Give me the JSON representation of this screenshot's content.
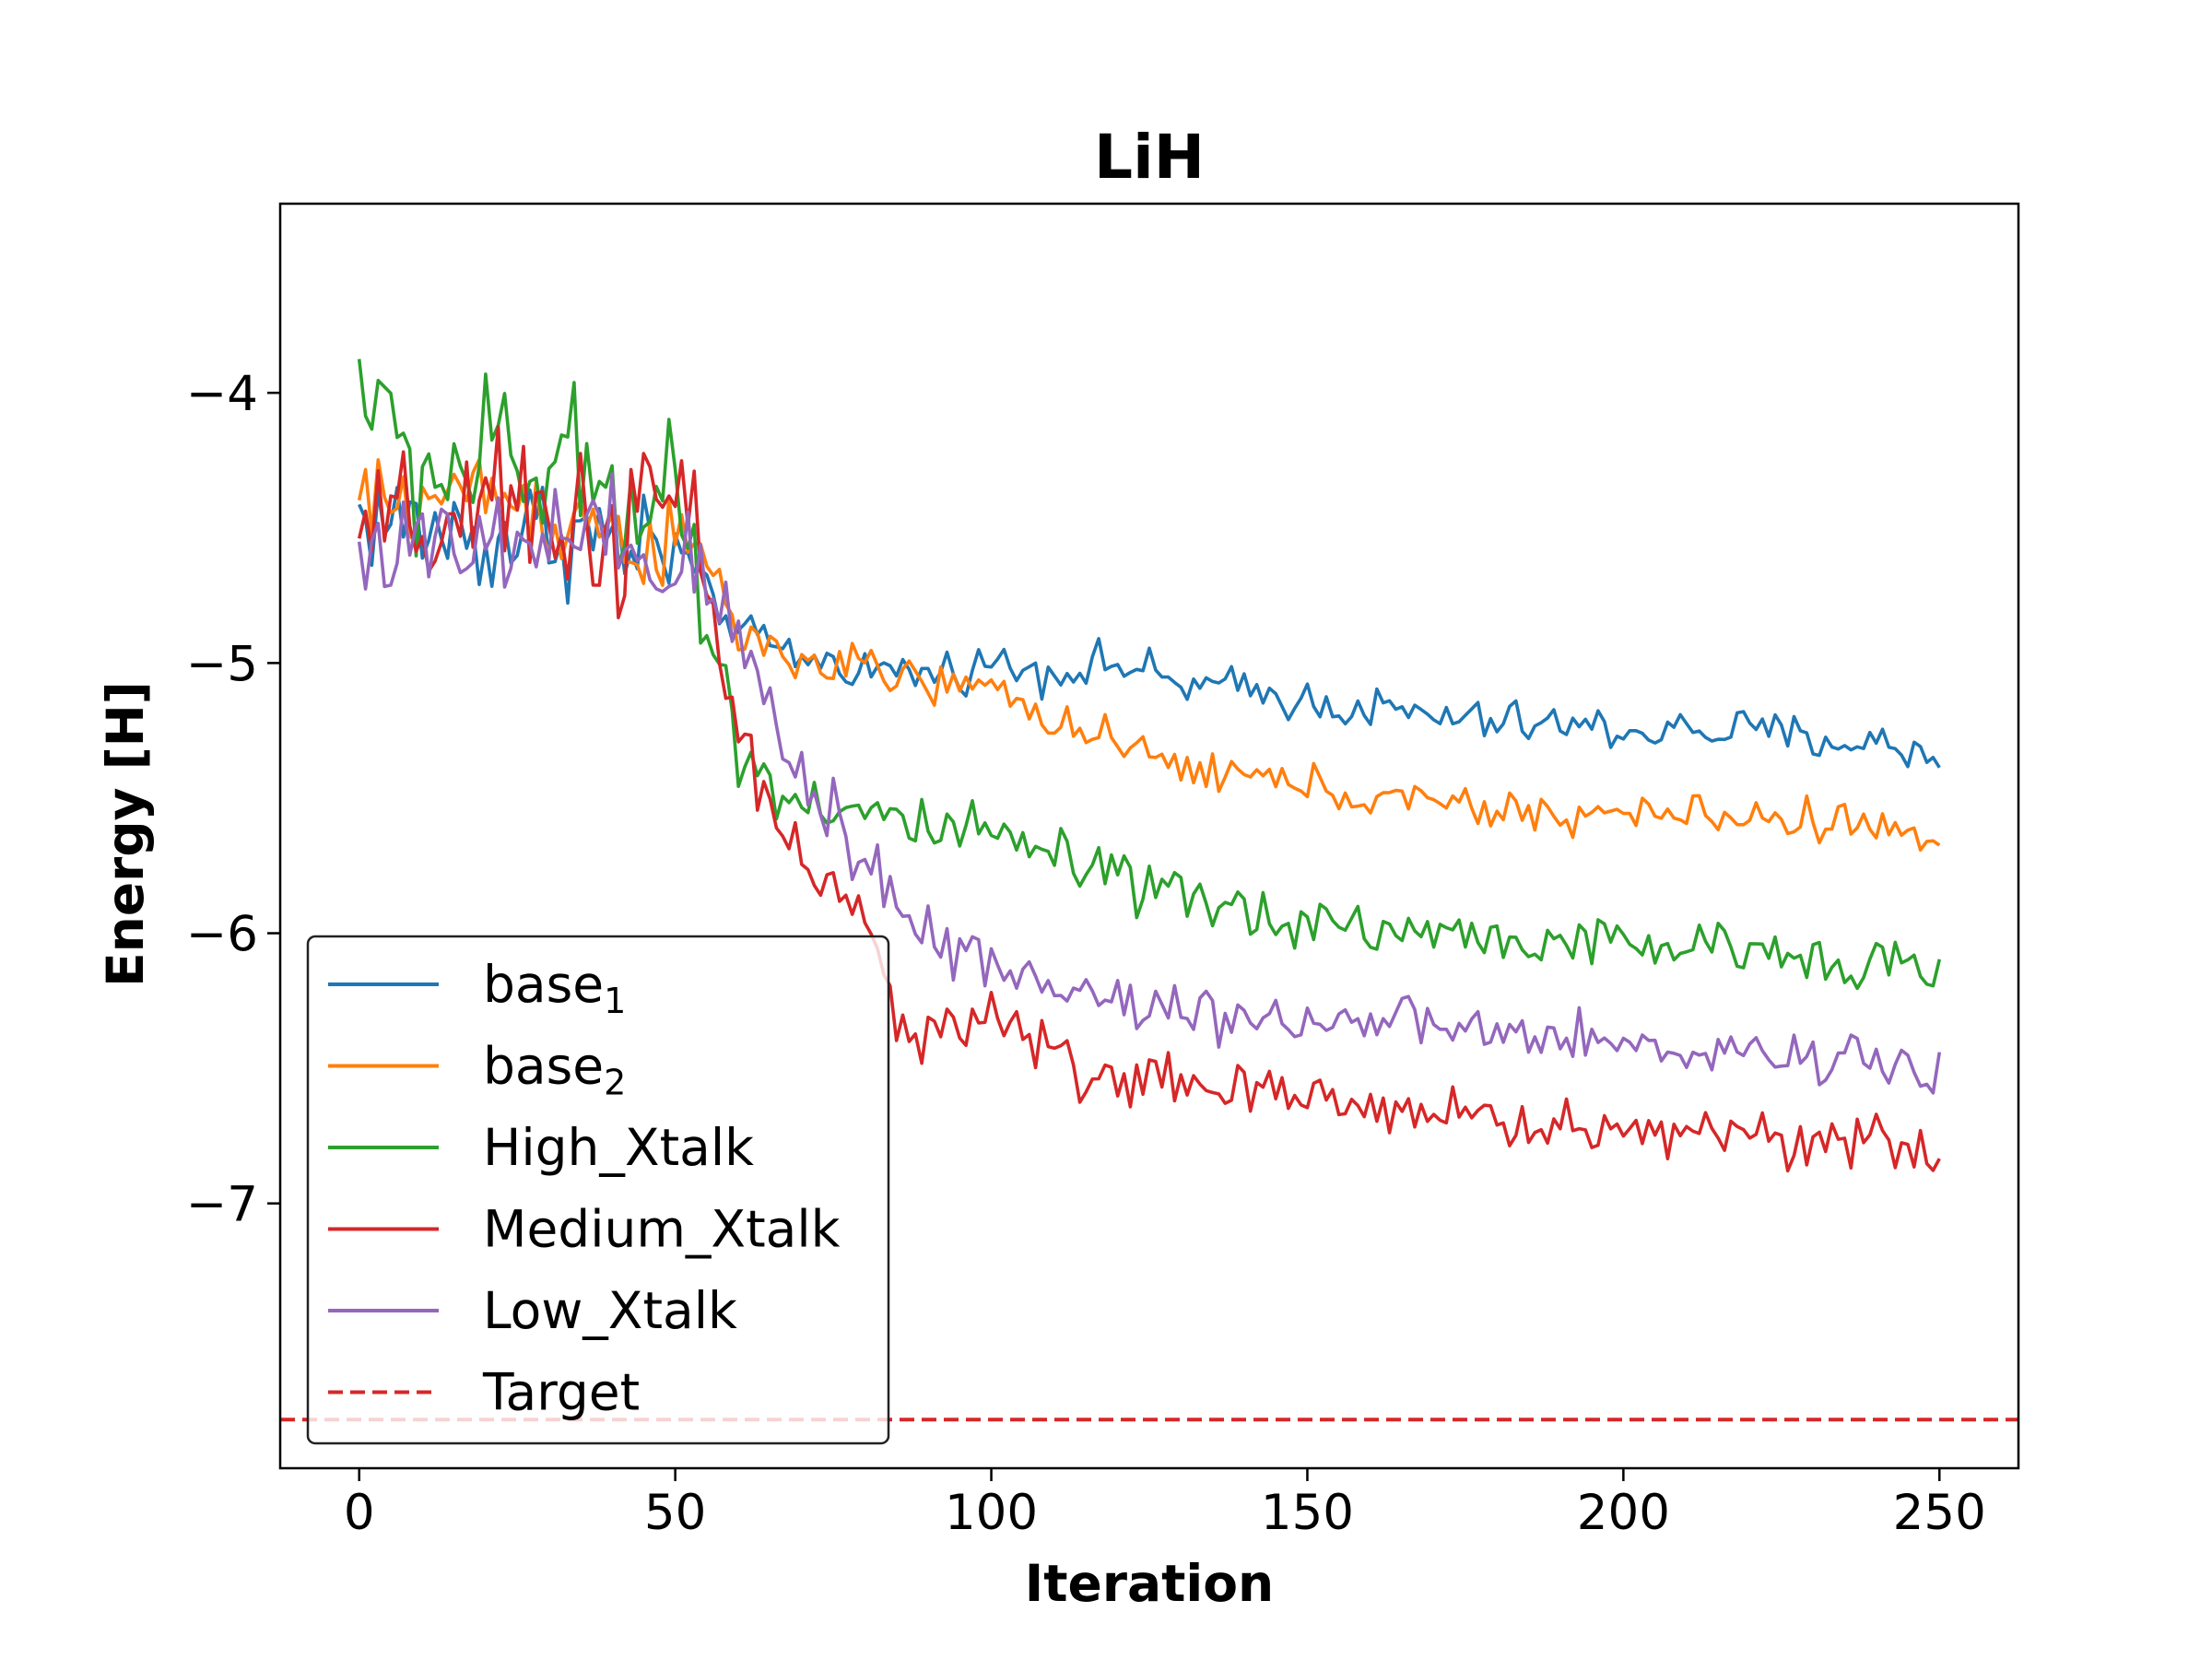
{
  "chart_data": {
    "type": "line",
    "title": "LiH",
    "xlabel": "Iteration",
    "ylabel": "Energy [H]",
    "xlim": [
      -12.5,
      262.5
    ],
    "ylim": [
      -7.98,
      -3.3
    ],
    "xticks": [
      0,
      50,
      100,
      150,
      200,
      250
    ],
    "yticks": [
      -4,
      -5,
      -6,
      -7
    ],
    "ytick_labels": [
      "−4",
      "−5",
      "−6",
      "−7"
    ],
    "grid": false,
    "legend_position": "lower-left",
    "target": {
      "name": "Target",
      "value": -7.8,
      "color": "#d62728",
      "style": "dashed"
    },
    "series": [
      {
        "name": "base",
        "subscript": "1",
        "color": "#1f77b4",
        "anchors": [
          [
            0,
            -4.45
          ],
          [
            10,
            -4.5
          ],
          [
            20,
            -4.55
          ],
          [
            30,
            -4.5
          ],
          [
            40,
            -4.55
          ],
          [
            50,
            -4.6
          ],
          [
            55,
            -4.75
          ],
          [
            60,
            -4.88
          ],
          [
            70,
            -4.98
          ],
          [
            80,
            -5.02
          ],
          [
            90,
            -5.04
          ],
          [
            100,
            -5.0
          ],
          [
            110,
            -5.03
          ],
          [
            120,
            -5.0
          ],
          [
            130,
            -5.08
          ],
          [
            140,
            -5.1
          ],
          [
            150,
            -5.14
          ],
          [
            160,
            -5.17
          ],
          [
            170,
            -5.2
          ],
          [
            180,
            -5.22
          ],
          [
            190,
            -5.23
          ],
          [
            200,
            -5.25
          ],
          [
            210,
            -5.25
          ],
          [
            220,
            -5.25
          ],
          [
            230,
            -5.28
          ],
          [
            240,
            -5.3
          ],
          [
            250,
            -5.35
          ]
        ],
        "noise": [
          [
            0,
            0.16
          ],
          [
            50,
            0.17
          ],
          [
            55,
            0.05
          ],
          [
            100,
            0.06
          ],
          [
            250,
            0.06
          ]
        ]
      },
      {
        "name": "base",
        "subscript": "2",
        "color": "#ff7f0e",
        "anchors": [
          [
            0,
            -4.42
          ],
          [
            10,
            -4.4
          ],
          [
            20,
            -4.35
          ],
          [
            30,
            -4.45
          ],
          [
            40,
            -4.5
          ],
          [
            50,
            -4.6
          ],
          [
            55,
            -4.6
          ],
          [
            60,
            -4.9
          ],
          [
            70,
            -5.0
          ],
          [
            80,
            -5.02
          ],
          [
            90,
            -5.08
          ],
          [
            100,
            -5.1
          ],
          [
            110,
            -5.2
          ],
          [
            120,
            -5.32
          ],
          [
            130,
            -5.38
          ],
          [
            140,
            -5.42
          ],
          [
            150,
            -5.45
          ],
          [
            160,
            -5.5
          ],
          [
            170,
            -5.52
          ],
          [
            180,
            -5.55
          ],
          [
            190,
            -5.56
          ],
          [
            200,
            -5.56
          ],
          [
            210,
            -5.56
          ],
          [
            220,
            -5.57
          ],
          [
            230,
            -5.58
          ],
          [
            240,
            -5.6
          ],
          [
            250,
            -5.68
          ]
        ],
        "noise": [
          [
            0,
            0.13
          ],
          [
            50,
            0.14
          ],
          [
            55,
            0.06
          ],
          [
            100,
            0.06
          ],
          [
            250,
            0.055
          ]
        ]
      },
      {
        "name": "High_Xtalk",
        "subscript": "",
        "color": "#2ca02c",
        "anchors": [
          [
            0,
            -3.9
          ],
          [
            5,
            -4.2
          ],
          [
            10,
            -4.3
          ],
          [
            20,
            -4.25
          ],
          [
            30,
            -4.3
          ],
          [
            40,
            -4.35
          ],
          [
            50,
            -4.3
          ],
          [
            53,
            -4.6
          ],
          [
            56,
            -5.0
          ],
          [
            60,
            -5.3
          ],
          [
            65,
            -5.45
          ],
          [
            70,
            -5.5
          ],
          [
            80,
            -5.55
          ],
          [
            90,
            -5.62
          ],
          [
            100,
            -5.65
          ],
          [
            110,
            -5.72
          ],
          [
            120,
            -5.82
          ],
          [
            130,
            -5.88
          ],
          [
            140,
            -5.92
          ],
          [
            150,
            -5.95
          ],
          [
            160,
            -5.98
          ],
          [
            170,
            -6.0
          ],
          [
            180,
            -6.02
          ],
          [
            190,
            -6.03
          ],
          [
            200,
            -6.05
          ],
          [
            210,
            -6.05
          ],
          [
            220,
            -6.07
          ],
          [
            230,
            -6.08
          ],
          [
            240,
            -6.1
          ],
          [
            250,
            -6.15
          ]
        ],
        "noise": [
          [
            0,
            0.22
          ],
          [
            50,
            0.25
          ],
          [
            53,
            0.18
          ],
          [
            60,
            0.09
          ],
          [
            250,
            0.065
          ]
        ]
      },
      {
        "name": "Medium_Xtalk",
        "subscript": "",
        "color": "#d62728",
        "anchors": [
          [
            0,
            -4.55
          ],
          [
            10,
            -4.5
          ],
          [
            20,
            -4.48
          ],
          [
            30,
            -4.45
          ],
          [
            40,
            -4.5
          ],
          [
            48,
            -4.48
          ],
          [
            52,
            -4.3
          ],
          [
            55,
            -4.8
          ],
          [
            60,
            -5.3
          ],
          [
            65,
            -5.5
          ],
          [
            70,
            -5.75
          ],
          [
            75,
            -5.85
          ],
          [
            80,
            -6.0
          ],
          [
            85,
            -6.3
          ],
          [
            90,
            -6.35
          ],
          [
            100,
            -6.3
          ],
          [
            110,
            -6.45
          ],
          [
            120,
            -6.55
          ],
          [
            130,
            -6.55
          ],
          [
            140,
            -6.6
          ],
          [
            150,
            -6.62
          ],
          [
            160,
            -6.63
          ],
          [
            170,
            -6.65
          ],
          [
            180,
            -6.7
          ],
          [
            190,
            -6.72
          ],
          [
            200,
            -6.74
          ],
          [
            210,
            -6.72
          ],
          [
            220,
            -6.74
          ],
          [
            230,
            -6.75
          ],
          [
            240,
            -6.78
          ],
          [
            250,
            -6.85
          ]
        ],
        "noise": [
          [
            0,
            0.2
          ],
          [
            50,
            0.25
          ],
          [
            53,
            0.22
          ],
          [
            60,
            0.1
          ],
          [
            100,
            0.08
          ],
          [
            250,
            0.08
          ]
        ]
      },
      {
        "name": "Low_Xtalk",
        "subscript": "",
        "color": "#9467bd",
        "anchors": [
          [
            0,
            -4.55
          ],
          [
            10,
            -4.6
          ],
          [
            20,
            -4.6
          ],
          [
            30,
            -4.55
          ],
          [
            40,
            -4.6
          ],
          [
            50,
            -4.65
          ],
          [
            55,
            -4.7
          ],
          [
            60,
            -4.9
          ],
          [
            65,
            -5.2
          ],
          [
            70,
            -5.4
          ],
          [
            75,
            -5.55
          ],
          [
            80,
            -5.7
          ],
          [
            85,
            -5.9
          ],
          [
            90,
            -6.0
          ],
          [
            100,
            -6.1
          ],
          [
            110,
            -6.2
          ],
          [
            120,
            -6.25
          ],
          [
            130,
            -6.28
          ],
          [
            140,
            -6.3
          ],
          [
            150,
            -6.32
          ],
          [
            160,
            -6.33
          ],
          [
            170,
            -6.35
          ],
          [
            180,
            -6.37
          ],
          [
            190,
            -6.4
          ],
          [
            200,
            -6.42
          ],
          [
            210,
            -6.43
          ],
          [
            220,
            -6.44
          ],
          [
            230,
            -6.45
          ],
          [
            240,
            -6.46
          ],
          [
            250,
            -6.5
          ]
        ],
        "noise": [
          [
            0,
            0.16
          ],
          [
            50,
            0.18
          ],
          [
            60,
            0.1
          ],
          [
            70,
            0.14
          ],
          [
            85,
            0.12
          ],
          [
            100,
            0.08
          ],
          [
            250,
            0.065
          ]
        ]
      }
    ]
  }
}
